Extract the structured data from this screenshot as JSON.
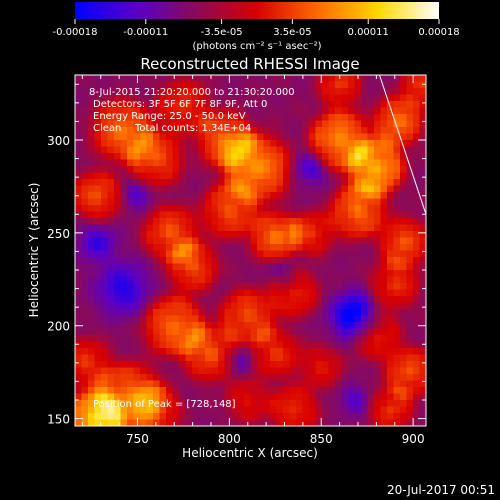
{
  "chart_data": {
    "type": "heatmap",
    "title": "Reconstructed RHESSI Image",
    "xlabel": "Heliocentric X (arcsec)",
    "ylabel": "Heliocentric Y (arcsec)",
    "xlim": [
      716,
      907
    ],
    "ylim": [
      146,
      335
    ],
    "x_ticks": [
      "750",
      "800",
      "850",
      "900"
    ],
    "y_ticks": [
      "150",
      "200",
      "250",
      "300"
    ],
    "colorbar": {
      "ticks": [
        "-0.00018",
        "-0.00011",
        "-3.5e-05",
        "3.5e-05",
        "0.00011",
        "0.00018"
      ],
      "range": [
        -0.00018,
        0.00018
      ],
      "unit_label": "(photons cm⁻² s⁻¹ asec⁻²)",
      "colors": [
        "#0000ff",
        "#5a00c8",
        "#8a0a5a",
        "#d80000",
        "#ff6a00",
        "#ffd800",
        "#ffffff"
      ]
    },
    "annotations": [
      "8-Jul-2015 21:20:20.000 to 21:30:20.000",
      "Detectors: 3F 5F 6F 7F 8F 9F, Att 0",
      "Energy Range: 25.0 - 50.0 keV",
      "Clean",
      "Total counts: 1.34E+04"
    ],
    "peak_label": "Position of Peak = [728,148]",
    "peak": [
      728,
      148
    ],
    "limb_line": [
      [
        880,
        340
      ],
      [
        907,
        260
      ]
    ],
    "hot_spots": [
      {
        "x": 727,
        "y": 150,
        "s": 10,
        "a": 1.0
      },
      {
        "x": 745,
        "y": 162,
        "s": 12,
        "a": 0.7
      },
      {
        "x": 760,
        "y": 155,
        "s": 9,
        "a": 0.5
      },
      {
        "x": 722,
        "y": 180,
        "s": 9,
        "a": 0.5
      },
      {
        "x": 742,
        "y": 305,
        "s": 11,
        "a": 0.7
      },
      {
        "x": 760,
        "y": 290,
        "s": 10,
        "a": 0.6
      },
      {
        "x": 728,
        "y": 270,
        "s": 9,
        "a": 0.6
      },
      {
        "x": 775,
        "y": 318,
        "s": 10,
        "a": 0.5
      },
      {
        "x": 798,
        "y": 300,
        "s": 10,
        "a": 0.7
      },
      {
        "x": 815,
        "y": 285,
        "s": 12,
        "a": 0.8
      },
      {
        "x": 800,
        "y": 262,
        "s": 10,
        "a": 0.6
      },
      {
        "x": 825,
        "y": 248,
        "s": 9,
        "a": 0.7
      },
      {
        "x": 845,
        "y": 250,
        "s": 8,
        "a": 0.5
      },
      {
        "x": 768,
        "y": 250,
        "s": 10,
        "a": 0.6
      },
      {
        "x": 780,
        "y": 232,
        "s": 9,
        "a": 0.6
      },
      {
        "x": 770,
        "y": 200,
        "s": 11,
        "a": 0.7
      },
      {
        "x": 790,
        "y": 185,
        "s": 10,
        "a": 0.6
      },
      {
        "x": 810,
        "y": 205,
        "s": 10,
        "a": 0.6
      },
      {
        "x": 825,
        "y": 185,
        "s": 9,
        "a": 0.5
      },
      {
        "x": 835,
        "y": 218,
        "s": 9,
        "a": 0.5
      },
      {
        "x": 860,
        "y": 300,
        "s": 11,
        "a": 0.8
      },
      {
        "x": 880,
        "y": 285,
        "s": 10,
        "a": 0.9
      },
      {
        "x": 892,
        "y": 310,
        "s": 9,
        "a": 0.7
      },
      {
        "x": 870,
        "y": 262,
        "s": 10,
        "a": 0.7
      },
      {
        "x": 895,
        "y": 245,
        "s": 9,
        "a": 0.6
      },
      {
        "x": 890,
        "y": 222,
        "s": 9,
        "a": 0.5
      },
      {
        "x": 880,
        "y": 195,
        "s": 9,
        "a": 0.5
      },
      {
        "x": 850,
        "y": 178,
        "s": 8,
        "a": 0.4
      },
      {
        "x": 898,
        "y": 175,
        "s": 9,
        "a": 0.6
      },
      {
        "x": 888,
        "y": 155,
        "s": 8,
        "a": 0.5
      },
      {
        "x": 835,
        "y": 155,
        "s": 9,
        "a": 0.5
      },
      {
        "x": 810,
        "y": 160,
        "s": 8,
        "a": 0.4
      },
      {
        "x": 860,
        "y": 330,
        "s": 8,
        "a": 0.5
      },
      {
        "x": 905,
        "y": 330,
        "s": 8,
        "a": 0.5
      }
    ],
    "cold_spots": [
      {
        "x": 868,
        "y": 205,
        "s": 12,
        "a": 0.9
      },
      {
        "x": 742,
        "y": 220,
        "s": 14,
        "a": 0.6
      },
      {
        "x": 728,
        "y": 245,
        "s": 10,
        "a": 0.5
      },
      {
        "x": 845,
        "y": 285,
        "s": 9,
        "a": 0.5
      },
      {
        "x": 750,
        "y": 270,
        "s": 8,
        "a": 0.4
      },
      {
        "x": 830,
        "y": 228,
        "s": 8,
        "a": 0.4
      },
      {
        "x": 805,
        "y": 182,
        "s": 8,
        "a": 0.4
      },
      {
        "x": 868,
        "y": 160,
        "s": 8,
        "a": 0.4
      }
    ]
  },
  "footer": {
    "timestamp": "20-Jul-2017 00:51"
  }
}
